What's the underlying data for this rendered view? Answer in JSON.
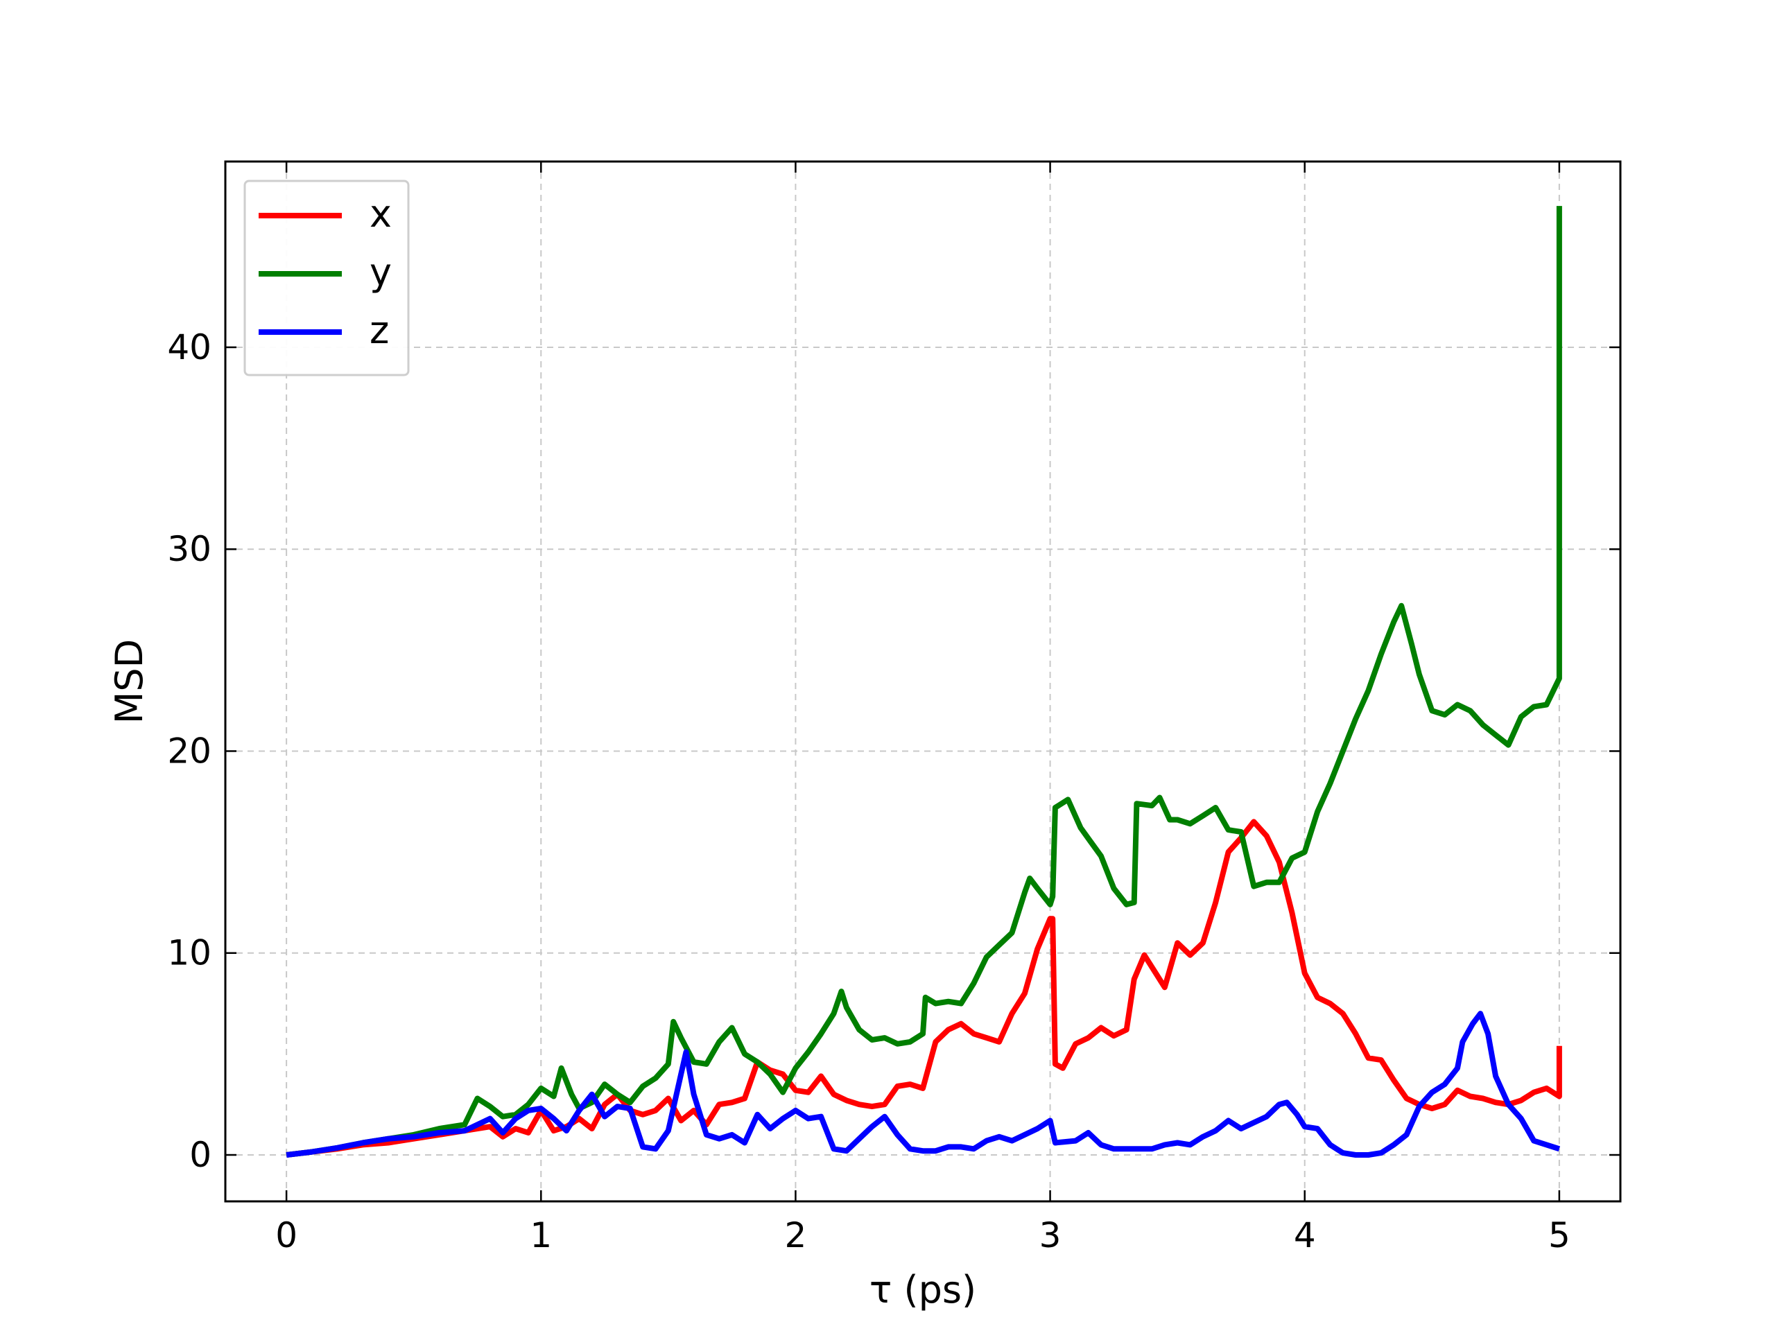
{
  "chart_data": {
    "type": "line",
    "title": "",
    "xlabel": "τ (ps)",
    "ylabel": "MSD",
    "xlim": [
      -0.24,
      5.24
    ],
    "ylim": [
      -2.3,
      49.2
    ],
    "xticks": [
      0,
      1,
      2,
      3,
      4,
      5
    ],
    "yticks": [
      0,
      10,
      20,
      30,
      40
    ],
    "xtick_labels": [
      "0",
      "1",
      "2",
      "3",
      "4",
      "5"
    ],
    "ytick_labels": [
      "0",
      "10",
      "20",
      "30",
      "40"
    ],
    "grid": true,
    "legend_position": "top-left",
    "series": [
      {
        "name": "x",
        "color": "#ff0000",
        "points": [
          [
            0,
            0
          ],
          [
            0.1,
            0.15
          ],
          [
            0.2,
            0.3
          ],
          [
            0.3,
            0.5
          ],
          [
            0.4,
            0.6
          ],
          [
            0.5,
            0.8
          ],
          [
            0.6,
            1.0
          ],
          [
            0.7,
            1.2
          ],
          [
            0.8,
            1.4
          ],
          [
            0.85,
            0.9
          ],
          [
            0.9,
            1.3
          ],
          [
            0.95,
            1.1
          ],
          [
            1.0,
            2.2
          ],
          [
            1.05,
            1.2
          ],
          [
            1.1,
            1.4
          ],
          [
            1.15,
            1.8
          ],
          [
            1.2,
            1.3
          ],
          [
            1.25,
            2.5
          ],
          [
            1.3,
            3.0
          ],
          [
            1.35,
            2.2
          ],
          [
            1.4,
            2.0
          ],
          [
            1.45,
            2.2
          ],
          [
            1.5,
            2.8
          ],
          [
            1.55,
            1.7
          ],
          [
            1.6,
            2.2
          ],
          [
            1.65,
            1.5
          ],
          [
            1.7,
            2.5
          ],
          [
            1.75,
            2.6
          ],
          [
            1.8,
            2.8
          ],
          [
            1.85,
            4.6
          ],
          [
            1.9,
            4.2
          ],
          [
            1.95,
            4.0
          ],
          [
            2.0,
            3.2
          ],
          [
            2.05,
            3.1
          ],
          [
            2.1,
            3.9
          ],
          [
            2.15,
            3.0
          ],
          [
            2.2,
            2.7
          ],
          [
            2.25,
            2.5
          ],
          [
            2.3,
            2.4
          ],
          [
            2.35,
            2.5
          ],
          [
            2.4,
            3.4
          ],
          [
            2.45,
            3.5
          ],
          [
            2.5,
            3.3
          ],
          [
            2.55,
            5.6
          ],
          [
            2.6,
            6.2
          ],
          [
            2.65,
            6.5
          ],
          [
            2.7,
            6.0
          ],
          [
            2.75,
            5.8
          ],
          [
            2.8,
            5.6
          ],
          [
            2.85,
            7.0
          ],
          [
            2.9,
            8.0
          ],
          [
            2.95,
            10.2
          ],
          [
            3.0,
            11.7
          ],
          [
            3.01,
            11.7
          ],
          [
            3.02,
            4.5
          ],
          [
            3.05,
            4.3
          ],
          [
            3.1,
            5.5
          ],
          [
            3.15,
            5.8
          ],
          [
            3.2,
            6.3
          ],
          [
            3.25,
            5.9
          ],
          [
            3.3,
            6.2
          ],
          [
            3.33,
            8.7
          ],
          [
            3.37,
            9.9
          ],
          [
            3.4,
            9.3
          ],
          [
            3.45,
            8.3
          ],
          [
            3.5,
            10.5
          ],
          [
            3.55,
            9.9
          ],
          [
            3.6,
            10.5
          ],
          [
            3.65,
            12.5
          ],
          [
            3.7,
            15.0
          ],
          [
            3.75,
            15.7
          ],
          [
            3.8,
            16.5
          ],
          [
            3.85,
            15.8
          ],
          [
            3.9,
            14.5
          ],
          [
            3.95,
            12.0
          ],
          [
            4.0,
            9.0
          ],
          [
            4.05,
            7.8
          ],
          [
            4.1,
            7.5
          ],
          [
            4.15,
            7.0
          ],
          [
            4.2,
            6.0
          ],
          [
            4.25,
            4.8
          ],
          [
            4.3,
            4.7
          ],
          [
            4.35,
            3.7
          ],
          [
            4.4,
            2.8
          ],
          [
            4.45,
            2.5
          ],
          [
            4.5,
            2.3
          ],
          [
            4.55,
            2.5
          ],
          [
            4.6,
            3.2
          ],
          [
            4.65,
            2.9
          ],
          [
            4.7,
            2.8
          ],
          [
            4.75,
            2.6
          ],
          [
            4.8,
            2.5
          ],
          [
            4.85,
            2.7
          ],
          [
            4.9,
            3.1
          ],
          [
            4.95,
            3.3
          ],
          [
            5.0,
            2.9
          ],
          [
            5.0,
            5.4
          ]
        ]
      },
      {
        "name": "y",
        "color": "#007f00",
        "points": [
          [
            0,
            0
          ],
          [
            0.1,
            0.15
          ],
          [
            0.2,
            0.35
          ],
          [
            0.3,
            0.6
          ],
          [
            0.4,
            0.8
          ],
          [
            0.5,
            1.0
          ],
          [
            0.6,
            1.3
          ],
          [
            0.7,
            1.5
          ],
          [
            0.75,
            2.8
          ],
          [
            0.8,
            2.4
          ],
          [
            0.85,
            1.9
          ],
          [
            0.9,
            2.0
          ],
          [
            0.95,
            2.5
          ],
          [
            1.0,
            3.3
          ],
          [
            1.05,
            2.9
          ],
          [
            1.08,
            4.3
          ],
          [
            1.12,
            3.0
          ],
          [
            1.15,
            2.3
          ],
          [
            1.2,
            2.6
          ],
          [
            1.25,
            3.5
          ],
          [
            1.3,
            3.0
          ],
          [
            1.35,
            2.6
          ],
          [
            1.4,
            3.4
          ],
          [
            1.45,
            3.8
          ],
          [
            1.5,
            4.5
          ],
          [
            1.52,
            6.6
          ],
          [
            1.55,
            5.8
          ],
          [
            1.6,
            4.6
          ],
          [
            1.65,
            4.5
          ],
          [
            1.7,
            5.6
          ],
          [
            1.75,
            6.3
          ],
          [
            1.8,
            5.0
          ],
          [
            1.85,
            4.6
          ],
          [
            1.9,
            4.0
          ],
          [
            1.95,
            3.1
          ],
          [
            2.0,
            4.3
          ],
          [
            2.05,
            5.1
          ],
          [
            2.1,
            6.0
          ],
          [
            2.15,
            7.0
          ],
          [
            2.18,
            8.1
          ],
          [
            2.2,
            7.3
          ],
          [
            2.25,
            6.2
          ],
          [
            2.3,
            5.7
          ],
          [
            2.35,
            5.8
          ],
          [
            2.4,
            5.5
          ],
          [
            2.45,
            5.6
          ],
          [
            2.5,
            6.0
          ],
          [
            2.51,
            7.8
          ],
          [
            2.55,
            7.5
          ],
          [
            2.6,
            7.6
          ],
          [
            2.65,
            7.5
          ],
          [
            2.7,
            8.5
          ],
          [
            2.75,
            9.8
          ],
          [
            2.8,
            10.4
          ],
          [
            2.85,
            11.0
          ],
          [
            2.9,
            13.0
          ],
          [
            2.92,
            13.7
          ],
          [
            2.95,
            13.2
          ],
          [
            3.0,
            12.4
          ],
          [
            3.01,
            12.8
          ],
          [
            3.02,
            17.2
          ],
          [
            3.07,
            17.6
          ],
          [
            3.12,
            16.2
          ],
          [
            3.16,
            15.5
          ],
          [
            3.2,
            14.8
          ],
          [
            3.25,
            13.2
          ],
          [
            3.3,
            12.4
          ],
          [
            3.33,
            12.5
          ],
          [
            3.34,
            17.4
          ],
          [
            3.4,
            17.3
          ],
          [
            3.43,
            17.7
          ],
          [
            3.47,
            16.6
          ],
          [
            3.5,
            16.6
          ],
          [
            3.55,
            16.4
          ],
          [
            3.6,
            16.8
          ],
          [
            3.65,
            17.2
          ],
          [
            3.7,
            16.1
          ],
          [
            3.75,
            16.0
          ],
          [
            3.8,
            13.3
          ],
          [
            3.85,
            13.5
          ],
          [
            3.9,
            13.5
          ],
          [
            3.95,
            14.7
          ],
          [
            4.0,
            15.0
          ],
          [
            4.05,
            17.0
          ],
          [
            4.1,
            18.4
          ],
          [
            4.15,
            20.0
          ],
          [
            4.2,
            21.6
          ],
          [
            4.25,
            23.0
          ],
          [
            4.3,
            24.8
          ],
          [
            4.35,
            26.4
          ],
          [
            4.38,
            27.2
          ],
          [
            4.42,
            25.3
          ],
          [
            4.45,
            23.8
          ],
          [
            4.5,
            22.0
          ],
          [
            4.55,
            21.8
          ],
          [
            4.6,
            22.3
          ],
          [
            4.65,
            22.0
          ],
          [
            4.7,
            21.3
          ],
          [
            4.75,
            20.8
          ],
          [
            4.8,
            20.3
          ],
          [
            4.85,
            21.7
          ],
          [
            4.9,
            22.2
          ],
          [
            4.95,
            22.3
          ],
          [
            5.0,
            23.6
          ],
          [
            5.0,
            47.0
          ]
        ]
      },
      {
        "name": "z",
        "color": "#0000ff",
        "points": [
          [
            0,
            0
          ],
          [
            0.1,
            0.15
          ],
          [
            0.2,
            0.35
          ],
          [
            0.3,
            0.6
          ],
          [
            0.4,
            0.8
          ],
          [
            0.5,
            0.9
          ],
          [
            0.6,
            1.1
          ],
          [
            0.7,
            1.2
          ],
          [
            0.8,
            1.8
          ],
          [
            0.85,
            1.1
          ],
          [
            0.9,
            1.8
          ],
          [
            0.95,
            2.2
          ],
          [
            1.0,
            2.3
          ],
          [
            1.05,
            1.8
          ],
          [
            1.1,
            1.2
          ],
          [
            1.15,
            2.2
          ],
          [
            1.2,
            3.0
          ],
          [
            1.25,
            1.9
          ],
          [
            1.3,
            2.4
          ],
          [
            1.35,
            2.3
          ],
          [
            1.4,
            0.4
          ],
          [
            1.45,
            0.3
          ],
          [
            1.5,
            1.2
          ],
          [
            1.55,
            4.0
          ],
          [
            1.57,
            5.1
          ],
          [
            1.6,
            3.0
          ],
          [
            1.65,
            1.0
          ],
          [
            1.7,
            0.8
          ],
          [
            1.75,
            1.0
          ],
          [
            1.8,
            0.6
          ],
          [
            1.85,
            2.0
          ],
          [
            1.9,
            1.3
          ],
          [
            1.95,
            1.8
          ],
          [
            2.0,
            2.2
          ],
          [
            2.05,
            1.8
          ],
          [
            2.1,
            1.9
          ],
          [
            2.15,
            0.3
          ],
          [
            2.2,
            0.2
          ],
          [
            2.25,
            0.8
          ],
          [
            2.3,
            1.4
          ],
          [
            2.35,
            1.9
          ],
          [
            2.4,
            1.0
          ],
          [
            2.45,
            0.3
          ],
          [
            2.5,
            0.2
          ],
          [
            2.55,
            0.2
          ],
          [
            2.6,
            0.4
          ],
          [
            2.65,
            0.4
          ],
          [
            2.7,
            0.3
          ],
          [
            2.75,
            0.7
          ],
          [
            2.8,
            0.9
          ],
          [
            2.85,
            0.7
          ],
          [
            2.9,
            1.0
          ],
          [
            2.95,
            1.3
          ],
          [
            3.0,
            1.7
          ],
          [
            3.02,
            0.6
          ],
          [
            3.1,
            0.7
          ],
          [
            3.15,
            1.1
          ],
          [
            3.2,
            0.5
          ],
          [
            3.25,
            0.3
          ],
          [
            3.3,
            0.3
          ],
          [
            3.35,
            0.3
          ],
          [
            3.4,
            0.3
          ],
          [
            3.45,
            0.5
          ],
          [
            3.5,
            0.6
          ],
          [
            3.55,
            0.5
          ],
          [
            3.6,
            0.9
          ],
          [
            3.65,
            1.2
          ],
          [
            3.7,
            1.7
          ],
          [
            3.75,
            1.3
          ],
          [
            3.8,
            1.6
          ],
          [
            3.85,
            1.9
          ],
          [
            3.9,
            2.5
          ],
          [
            3.93,
            2.6
          ],
          [
            3.97,
            2.0
          ],
          [
            4.0,
            1.4
          ],
          [
            4.05,
            1.3
          ],
          [
            4.1,
            0.5
          ],
          [
            4.15,
            0.1
          ],
          [
            4.2,
            0.0
          ],
          [
            4.25,
            0.0
          ],
          [
            4.3,
            0.1
          ],
          [
            4.35,
            0.5
          ],
          [
            4.4,
            1.0
          ],
          [
            4.45,
            2.4
          ],
          [
            4.5,
            3.1
          ],
          [
            4.55,
            3.5
          ],
          [
            4.6,
            4.3
          ],
          [
            4.62,
            5.6
          ],
          [
            4.66,
            6.5
          ],
          [
            4.69,
            7.0
          ],
          [
            4.72,
            6.0
          ],
          [
            4.75,
            3.9
          ],
          [
            4.8,
            2.5
          ],
          [
            4.85,
            1.8
          ],
          [
            4.9,
            0.7
          ],
          [
            4.95,
            0.5
          ],
          [
            5.0,
            0.3
          ]
        ]
      }
    ]
  }
}
